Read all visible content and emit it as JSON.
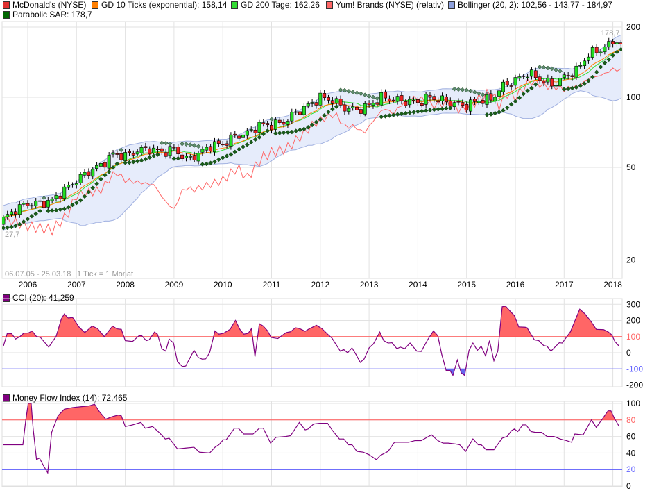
{
  "legend": [
    {
      "label": "McDonald's (NYSE)",
      "color": "#e03030"
    },
    {
      "label": "GD 10 Ticks (exponential): 158,14",
      "color": "#ff7f00"
    },
    {
      "label": "GD 200 Tage: 162,26",
      "color": "#33dd33"
    },
    {
      "label": "Yum! Brands (NYSE) (relativ)",
      "color": "#ff6666"
    },
    {
      "label": "Bollinger (20, 2): 102,56 - 143,77 - 184,97",
      "color": "#8da0dd"
    },
    {
      "label": "Parabolic SAR: 178,7",
      "color": "#006600"
    }
  ],
  "chart_data": [
    {
      "type": "candlestick",
      "title": "McDonald's (NYSE)",
      "range_label": "06.07.05 - 25.03.18",
      "tick_label": "1 Tick = 1 Monat",
      "max_label": "178,7",
      "min_label": "27,7",
      "yscale": "log",
      "ylim": [
        17,
        215
      ],
      "yticks": [
        20,
        50,
        100,
        200
      ],
      "xticks": [
        "2006",
        "2007",
        "2008",
        "2009",
        "2010",
        "2011",
        "2012",
        "2013",
        "2014",
        "2015",
        "2016",
        "2017",
        "2018"
      ],
      "xlim": [
        2005.5,
        2018.23
      ],
      "close_keypoints": [
        [
          2005.5,
          30
        ],
        [
          2005.75,
          33
        ],
        [
          2006.0,
          35
        ],
        [
          2006.25,
          35
        ],
        [
          2006.5,
          36
        ],
        [
          2006.75,
          40
        ],
        [
          2007.0,
          44
        ],
        [
          2007.25,
          48
        ],
        [
          2007.5,
          51
        ],
        [
          2007.75,
          57
        ],
        [
          2008.0,
          56
        ],
        [
          2008.25,
          59
        ],
        [
          2008.5,
          60
        ],
        [
          2008.75,
          58
        ],
        [
          2009.0,
          60
        ],
        [
          2009.25,
          54
        ],
        [
          2009.5,
          57
        ],
        [
          2009.75,
          62
        ],
        [
          2010.0,
          63
        ],
        [
          2010.25,
          68
        ],
        [
          2010.5,
          70
        ],
        [
          2010.75,
          76
        ],
        [
          2011.0,
          76
        ],
        [
          2011.25,
          78
        ],
        [
          2011.5,
          86
        ],
        [
          2011.75,
          92
        ],
        [
          2012.0,
          100
        ],
        [
          2012.25,
          97
        ],
        [
          2012.5,
          90
        ],
        [
          2012.75,
          88
        ],
        [
          2013.0,
          92
        ],
        [
          2013.25,
          100
        ],
        [
          2013.5,
          98
        ],
        [
          2013.75,
          96
        ],
        [
          2014.0,
          95
        ],
        [
          2014.25,
          100
        ],
        [
          2014.5,
          97
        ],
        [
          2014.75,
          94
        ],
        [
          2015.0,
          92
        ],
        [
          2015.25,
          97
        ],
        [
          2015.5,
          98
        ],
        [
          2015.75,
          112
        ],
        [
          2016.0,
          118
        ],
        [
          2016.25,
          127
        ],
        [
          2016.5,
          120
        ],
        [
          2016.75,
          113
        ],
        [
          2017.0,
          122
        ],
        [
          2017.25,
          130
        ],
        [
          2017.5,
          153
        ],
        [
          2017.75,
          160
        ],
        [
          2018.0,
          172
        ],
        [
          2018.08,
          178
        ],
        [
          2018.2,
          158
        ]
      ],
      "yum_relative": [
        [
          2005.5,
          30
        ],
        [
          2006.0,
          28
        ],
        [
          2006.5,
          27
        ],
        [
          2006.8,
          31
        ],
        [
          2007.0,
          38
        ],
        [
          2007.5,
          40
        ],
        [
          2007.8,
          48
        ],
        [
          2008.0,
          44
        ],
        [
          2008.3,
          43
        ],
        [
          2008.6,
          42
        ],
        [
          2008.8,
          36
        ],
        [
          2009.0,
          33
        ],
        [
          2009.2,
          41
        ],
        [
          2009.4,
          40
        ],
        [
          2009.7,
          42
        ],
        [
          2010.0,
          44
        ],
        [
          2010.3,
          50
        ],
        [
          2010.5,
          45
        ],
        [
          2010.8,
          55
        ],
        [
          2011.0,
          58
        ],
        [
          2011.3,
          60
        ],
        [
          2011.6,
          68
        ],
        [
          2011.8,
          75
        ],
        [
          2012.0,
          80
        ],
        [
          2012.3,
          85
        ],
        [
          2012.5,
          75
        ],
        [
          2012.7,
          75
        ],
        [
          2012.9,
          70
        ],
        [
          2013.0,
          75
        ],
        [
          2013.3,
          90
        ],
        [
          2013.5,
          85
        ],
        [
          2013.7,
          95
        ],
        [
          2014.0,
          100
        ],
        [
          2014.3,
          92
        ],
        [
          2014.6,
          95
        ],
        [
          2014.9,
          88
        ],
        [
          2015.0,
          90
        ],
        [
          2015.3,
          100
        ],
        [
          2015.5,
          105
        ],
        [
          2015.7,
          90
        ],
        [
          2015.8,
          105
        ],
        [
          2016.0,
          100
        ],
        [
          2016.3,
          118
        ],
        [
          2016.6,
          112
        ],
        [
          2016.9,
          110
        ],
        [
          2017.0,
          108
        ],
        [
          2017.3,
          112
        ],
        [
          2017.5,
          120
        ],
        [
          2017.8,
          125
        ],
        [
          2018.0,
          132
        ],
        [
          2018.2,
          130
        ]
      ]
    },
    {
      "type": "line",
      "title": "CCI (20): 41,259",
      "ylim": [
        -200,
        300
      ],
      "yticks": [
        -200,
        -100,
        0,
        100,
        200,
        300
      ],
      "levels": [
        100,
        -100
      ],
      "series": [
        [
          2005.5,
          40
        ],
        [
          2005.58,
          120
        ],
        [
          2005.67,
          118
        ],
        [
          2005.75,
          85
        ],
        [
          2005.84,
          100
        ],
        [
          2005.92,
          122
        ],
        [
          2006.01,
          122
        ],
        [
          2006.09,
          135
        ],
        [
          2006.18,
          100
        ],
        [
          2006.26,
          95
        ],
        [
          2006.43,
          35
        ],
        [
          2006.58,
          100
        ],
        [
          2006.69,
          210
        ],
        [
          2006.75,
          240
        ],
        [
          2006.83,
          215
        ],
        [
          2006.92,
          218
        ],
        [
          2007.05,
          160
        ],
        [
          2007.17,
          125
        ],
        [
          2007.32,
          165
        ],
        [
          2007.43,
          150
        ],
        [
          2007.57,
          100
        ],
        [
          2007.74,
          165
        ],
        [
          2007.83,
          148
        ],
        [
          2007.92,
          145
        ],
        [
          2008.0,
          75
        ],
        [
          2008.15,
          70
        ],
        [
          2008.28,
          105
        ],
        [
          2008.34,
          105
        ],
        [
          2008.43,
          75
        ],
        [
          2008.49,
          80
        ],
        [
          2008.6,
          128
        ],
        [
          2008.66,
          115
        ],
        [
          2008.75,
          25
        ],
        [
          2008.83,
          10
        ],
        [
          2008.9,
          85
        ],
        [
          2008.99,
          60
        ],
        [
          2009.07,
          -55
        ],
        [
          2009.17,
          -85
        ],
        [
          2009.24,
          -82
        ],
        [
          2009.41,
          15
        ],
        [
          2009.5,
          -30
        ],
        [
          2009.58,
          -40
        ],
        [
          2009.65,
          -38
        ],
        [
          2009.73,
          0
        ],
        [
          2009.84,
          135
        ],
        [
          2009.92,
          115
        ],
        [
          2010.01,
          120
        ],
        [
          2010.15,
          145
        ],
        [
          2010.26,
          200
        ],
        [
          2010.35,
          145
        ],
        [
          2010.43,
          115
        ],
        [
          2010.52,
          120
        ],
        [
          2010.59,
          150
        ],
        [
          2010.66,
          -25
        ],
        [
          2010.75,
          180
        ],
        [
          2010.83,
          165
        ],
        [
          2010.92,
          135
        ],
        [
          2010.99,
          95
        ],
        [
          2011.13,
          88
        ],
        [
          2011.3,
          125
        ],
        [
          2011.39,
          130
        ],
        [
          2011.49,
          155
        ],
        [
          2011.57,
          150
        ],
        [
          2011.69,
          133
        ],
        [
          2011.77,
          148
        ],
        [
          2011.92,
          170
        ],
        [
          2012.03,
          150
        ],
        [
          2012.15,
          115
        ],
        [
          2012.24,
          90
        ],
        [
          2012.41,
          10
        ],
        [
          2012.48,
          20
        ],
        [
          2012.56,
          0
        ],
        [
          2012.65,
          30
        ],
        [
          2012.73,
          -10
        ],
        [
          2012.82,
          -60
        ],
        [
          2012.9,
          -38
        ],
        [
          2013.0,
          30
        ],
        [
          2013.09,
          55
        ],
        [
          2013.22,
          128
        ],
        [
          2013.3,
          75
        ],
        [
          2013.39,
          60
        ],
        [
          2013.47,
          62
        ],
        [
          2013.57,
          25
        ],
        [
          2013.64,
          35
        ],
        [
          2013.73,
          25
        ],
        [
          2013.84,
          60
        ],
        [
          2013.98,
          10
        ],
        [
          2014.07,
          8
        ],
        [
          2014.2,
          80
        ],
        [
          2014.32,
          135
        ],
        [
          2014.41,
          105
        ],
        [
          2014.49,
          -10
        ],
        [
          2014.58,
          -110
        ],
        [
          2014.66,
          -110
        ],
        [
          2014.72,
          -140
        ],
        [
          2014.81,
          -45
        ],
        [
          2014.89,
          -125
        ],
        [
          2014.96,
          -140
        ],
        [
          2015.05,
          15
        ],
        [
          2015.13,
          60
        ],
        [
          2015.22,
          15
        ],
        [
          2015.3,
          40
        ],
        [
          2015.39,
          -20
        ],
        [
          2015.47,
          75
        ],
        [
          2015.56,
          -50
        ],
        [
          2015.64,
          10
        ],
        [
          2015.73,
          285
        ],
        [
          2015.8,
          288
        ],
        [
          2015.9,
          255
        ],
        [
          2015.98,
          230
        ],
        [
          2016.07,
          160
        ],
        [
          2016.2,
          158
        ],
        [
          2016.24,
          155
        ],
        [
          2016.39,
          80
        ],
        [
          2016.48,
          75
        ],
        [
          2016.58,
          45
        ],
        [
          2016.65,
          40
        ],
        [
          2016.73,
          10
        ],
        [
          2016.9,
          62
        ],
        [
          2016.96,
          60
        ],
        [
          2017.13,
          130
        ],
        [
          2017.32,
          270
        ],
        [
          2017.43,
          240
        ],
        [
          2017.56,
          190
        ],
        [
          2017.66,
          145
        ],
        [
          2017.81,
          143
        ],
        [
          2017.9,
          130
        ],
        [
          2017.98,
          110
        ],
        [
          2018.04,
          70
        ],
        [
          2018.13,
          40
        ]
      ]
    },
    {
      "type": "line",
      "title": "Money Flow Index (14): 72,465",
      "ylim": [
        0,
        100
      ],
      "yticks": [
        0,
        20,
        40,
        60,
        80,
        100
      ],
      "levels": [
        80,
        20
      ],
      "series": [
        [
          2005.5,
          50
        ],
        [
          2005.9,
          50
        ],
        [
          2005.96,
          80
        ],
        [
          2006.01,
          100
        ],
        [
          2006.07,
          100
        ],
        [
          2006.11,
          70
        ],
        [
          2006.18,
          32
        ],
        [
          2006.24,
          34
        ],
        [
          2006.32,
          25
        ],
        [
          2006.41,
          16
        ],
        [
          2006.49,
          65
        ],
        [
          2006.62,
          85
        ],
        [
          2006.75,
          93
        ],
        [
          2006.92,
          95
        ],
        [
          2007.09,
          96
        ],
        [
          2007.26,
          97
        ],
        [
          2007.37,
          99
        ],
        [
          2007.47,
          90
        ],
        [
          2007.6,
          81
        ],
        [
          2007.73,
          84
        ],
        [
          2007.86,
          86
        ],
        [
          2007.92,
          85
        ],
        [
          2008.0,
          72
        ],
        [
          2008.15,
          74
        ],
        [
          2008.32,
          77
        ],
        [
          2008.41,
          70
        ],
        [
          2008.56,
          72
        ],
        [
          2008.71,
          64
        ],
        [
          2008.82,
          57
        ],
        [
          2008.9,
          58
        ],
        [
          2009.07,
          45
        ],
        [
          2009.24,
          46
        ],
        [
          2009.41,
          47
        ],
        [
          2009.52,
          41
        ],
        [
          2009.73,
          40
        ],
        [
          2009.84,
          47
        ],
        [
          2009.92,
          50
        ],
        [
          2010.01,
          56
        ],
        [
          2010.07,
          56
        ],
        [
          2010.24,
          70
        ],
        [
          2010.32,
          70
        ],
        [
          2010.43,
          63
        ],
        [
          2010.62,
          63
        ],
        [
          2010.75,
          70
        ],
        [
          2010.83,
          70
        ],
        [
          2010.98,
          52
        ],
        [
          2011.09,
          59
        ],
        [
          2011.29,
          60
        ],
        [
          2011.39,
          61
        ],
        [
          2011.57,
          77
        ],
        [
          2011.69,
          68
        ],
        [
          2011.75,
          69
        ],
        [
          2011.86,
          75
        ],
        [
          2011.98,
          76
        ],
        [
          2012.15,
          76
        ],
        [
          2012.24,
          68
        ],
        [
          2012.39,
          57
        ],
        [
          2012.48,
          57
        ],
        [
          2012.58,
          50
        ],
        [
          2012.65,
          50
        ],
        [
          2012.75,
          42
        ],
        [
          2012.88,
          41
        ],
        [
          2013.0,
          38
        ],
        [
          2013.15,
          32
        ],
        [
          2013.23,
          37
        ],
        [
          2013.39,
          42
        ],
        [
          2013.52,
          53
        ],
        [
          2013.62,
          53
        ],
        [
          2013.81,
          53
        ],
        [
          2013.94,
          55
        ],
        [
          2014.07,
          55
        ],
        [
          2014.28,
          62
        ],
        [
          2014.41,
          55
        ],
        [
          2014.52,
          52
        ],
        [
          2014.62,
          52
        ],
        [
          2014.77,
          51
        ],
        [
          2014.86,
          50
        ],
        [
          2014.98,
          42
        ],
        [
          2015.13,
          57
        ],
        [
          2015.24,
          50
        ],
        [
          2015.3,
          50
        ],
        [
          2015.4,
          44
        ],
        [
          2015.56,
          44
        ],
        [
          2015.73,
          58
        ],
        [
          2015.83,
          60
        ],
        [
          2015.92,
          67
        ],
        [
          2015.98,
          69
        ],
        [
          2016.05,
          66
        ],
        [
          2016.15,
          74
        ],
        [
          2016.22,
          74
        ],
        [
          2016.32,
          66
        ],
        [
          2016.41,
          65
        ],
        [
          2016.54,
          65
        ],
        [
          2016.65,
          60
        ],
        [
          2016.79,
          60
        ],
        [
          2016.92,
          57
        ],
        [
          2017.05,
          55
        ],
        [
          2017.15,
          53
        ],
        [
          2017.22,
          63
        ],
        [
          2017.39,
          62
        ],
        [
          2017.56,
          80
        ],
        [
          2017.66,
          71
        ],
        [
          2017.77,
          80
        ],
        [
          2017.9,
          91
        ],
        [
          2017.96,
          91
        ],
        [
          2018.04,
          81
        ],
        [
          2018.13,
          72
        ]
      ]
    }
  ]
}
